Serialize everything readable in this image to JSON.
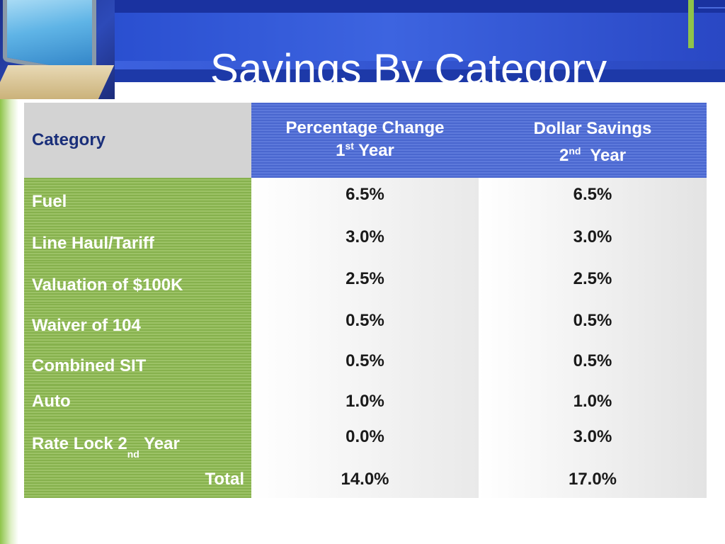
{
  "slide": {
    "title": "Savings By Category"
  },
  "table": {
    "header": {
      "category": "Category",
      "col1_line1": "Percentage Change",
      "col1_num": "1",
      "col1_sup": "st",
      "col1_rest": " Year",
      "col2_line1": "Dollar Savings",
      "col2_num": "2",
      "col2_sup": "nd",
      "col2_rest": "  Year"
    },
    "rows": [
      {
        "category": "Fuel",
        "pct": "6.5%",
        "dollar": "6.5%"
      },
      {
        "category": "Line Haul/Tariff",
        "pct": "3.0%",
        "dollar": "3.0%"
      },
      {
        "category": "Valuation of $100K",
        "pct": "2.5%",
        "dollar": "2.5%"
      },
      {
        "category": "Waiver of 104",
        "pct": "0.5%",
        "dollar": "0.5%"
      },
      {
        "category": "Combined SIT",
        "pct": "0.5%",
        "dollar": "0.5%"
      },
      {
        "category": "Auto",
        "pct": "1.0%",
        "dollar": "1.0%"
      },
      {
        "category_pre": "Rate Lock 2",
        "category_sup": "nd",
        "category_post": " Year",
        "pct": "0.0%",
        "dollar": "3.0%"
      }
    ],
    "total": {
      "label": "Total",
      "pct": "14.0%",
      "dollar": "17.0%"
    }
  },
  "colors": {
    "header_blue": "#2a4fd0",
    "category_green": "#8fbb55",
    "accent_green": "#8fc34a"
  }
}
